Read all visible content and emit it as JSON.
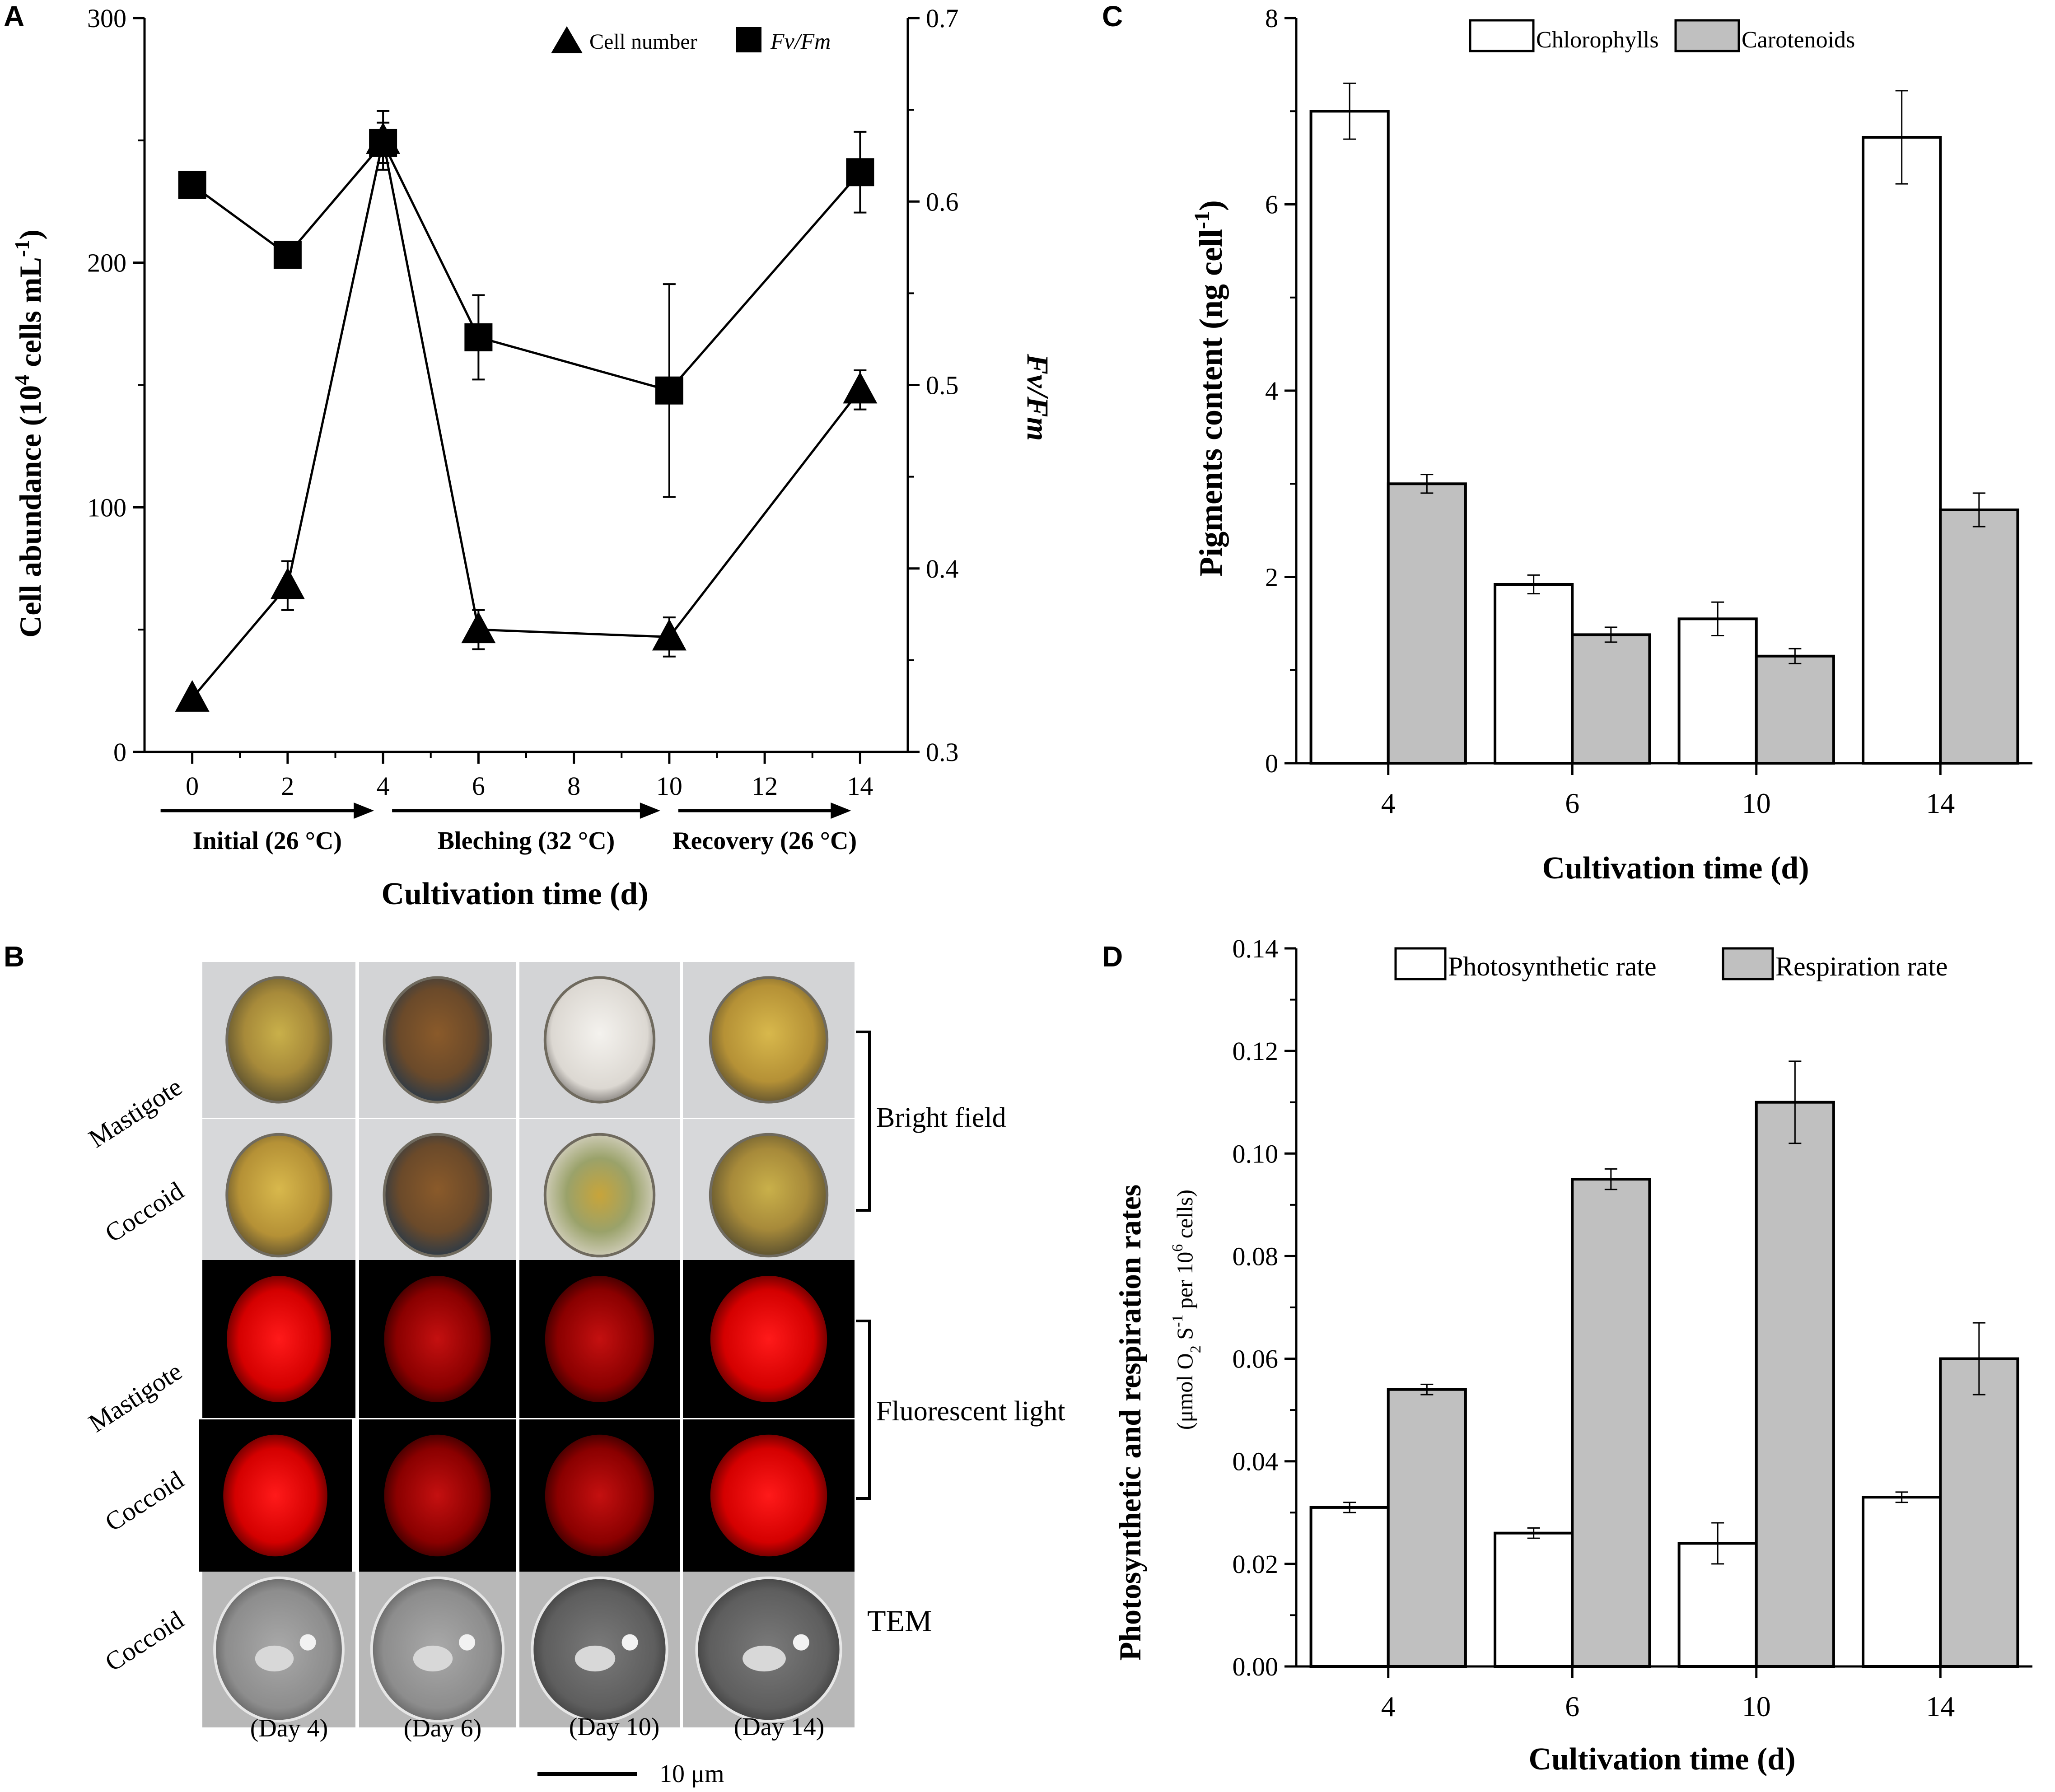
{
  "panels": [
    "A",
    "B",
    "C",
    "D"
  ],
  "chart_data": [
    {
      "id": "A",
      "type": "line",
      "x": [
        0,
        2,
        4,
        6,
        10,
        14
      ],
      "series": [
        {
          "name": "Cell number",
          "axis": "left",
          "marker": "triangle",
          "values": [
            22,
            68,
            250,
            50,
            47,
            148
          ],
          "errors": [
            2,
            10,
            12,
            8,
            8,
            8
          ]
        },
        {
          "name": "Fv/Fm",
          "axis": "right",
          "marker": "square",
          "values": [
            0.609,
            0.571,
            0.632,
            0.526,
            0.497,
            0.616
          ],
          "errors": [
            0.003,
            0.006,
            0.011,
            0.023,
            0.058,
            0.022
          ]
        }
      ],
      "xlim": [
        -1,
        15
      ],
      "xticks": [
        0,
        2,
        4,
        6,
        8,
        10,
        12,
        14
      ],
      "ylim": [
        0,
        300
      ],
      "yticks": [
        0,
        100,
        200,
        300
      ],
      "y2lim": [
        0.3,
        0.7
      ],
      "y2ticks": [
        "0.3",
        "0.4",
        "0.5",
        "0.6",
        "0.7"
      ],
      "xlabel": "Cultivation time (d)",
      "ylabel_pre": "Cell abundance (10",
      "ylabel_sup": "4",
      "ylabel_post": " cells mL",
      "ylabel_sup2": "-1",
      "ylabel_end": ")",
      "y2label": "Fv/Fm",
      "legend": [
        "Cell number",
        "Fv/Fm"
      ],
      "legend_position": "top-right",
      "phases": [
        {
          "label": "Initial (26 °C)",
          "from": 0,
          "to": 4
        },
        {
          "label": "Bleching (32 °C)",
          "from": 4,
          "to": 10
        },
        {
          "label": "Recovery (26 °C)",
          "from": 10,
          "to": 14
        }
      ]
    },
    {
      "id": "C",
      "type": "bar",
      "categories": [
        "4",
        "6",
        "10",
        "14"
      ],
      "series": [
        {
          "name": "Chlorophylls",
          "color": "#ffffff",
          "values": [
            7.0,
            1.92,
            1.55,
            6.72
          ],
          "errors": [
            0.3,
            0.1,
            0.18,
            0.5
          ]
        },
        {
          "name": "Carotenoids",
          "color": "#c0c0c0",
          "values": [
            3.0,
            1.38,
            1.15,
            2.72
          ],
          "errors": [
            0.1,
            0.08,
            0.08,
            0.18
          ]
        }
      ],
      "ylim": [
        0,
        8
      ],
      "yticks": [
        0,
        2,
        4,
        6,
        8
      ],
      "xlabel": "Cultivation time (d)",
      "ylabel_pre": "Pigments content (ng cell",
      "ylabel_sup": "-1",
      "ylabel_end": ")",
      "legend": [
        "Chlorophylls",
        "Carotenoids"
      ],
      "legend_position": "top"
    },
    {
      "id": "D",
      "type": "bar",
      "categories": [
        "4",
        "6",
        "10",
        "14"
      ],
      "series": [
        {
          "name": "Photosynthetic rate",
          "color": "#ffffff",
          "values": [
            0.031,
            0.026,
            0.024,
            0.033
          ],
          "errors": [
            0.001,
            0.001,
            0.004,
            0.001
          ]
        },
        {
          "name": "Respiration rate",
          "color": "#c0c0c0",
          "values": [
            0.054,
            0.095,
            0.11,
            0.06
          ],
          "errors": [
            0.001,
            0.002,
            0.008,
            0.007
          ]
        }
      ],
      "ylim": [
        0,
        0.14
      ],
      "yticks": [
        "0.00",
        "0.02",
        "0.04",
        "0.06",
        "0.08",
        "0.10",
        "0.12",
        "0.14"
      ],
      "xlabel": "Cultivation time (d)",
      "ylabel": "Photosynthetic and respiration rates",
      "ylabel2_pre": "(μmol O",
      "ylabel2_sub": "2",
      "ylabel2_mid": " S",
      "ylabel2_sup": "-1",
      "ylabel2_mid2": " per 10",
      "ylabel2_sup2": "6",
      "ylabel2_end": " cells)",
      "legend": [
        "Photosynthetic rate",
        "Respiration rate"
      ],
      "legend_position": "top"
    }
  ],
  "micrographs": {
    "row_labels": [
      "Mastigote",
      "Coccoid",
      "Mastigote",
      "Coccoid",
      "Coccoid"
    ],
    "group_labels": [
      "Bright field",
      "Fluorescent light",
      "TEM"
    ],
    "day_labels": [
      "(Day 4)",
      "(Day 6)",
      "(Day 10)",
      "(Day 14)"
    ],
    "scale_bar": "10 μm"
  }
}
